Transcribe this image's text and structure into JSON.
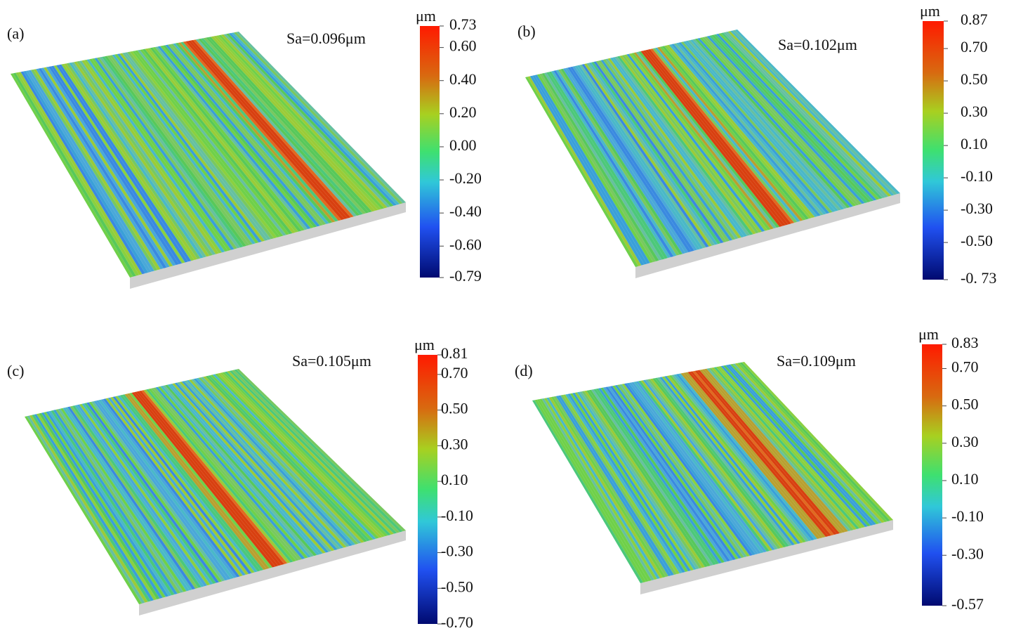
{
  "panels": [
    {
      "label": "(a)",
      "sa": "Sa=0.096μm",
      "unit": "μm",
      "colorbar": {
        "lim": [
          -0.79,
          0.73
        ],
        "ticks": [
          {
            "value": 0.73,
            "label": "0.73"
          },
          {
            "value": 0.6,
            "label": "0.60"
          },
          {
            "value": 0.4,
            "label": "0.40"
          },
          {
            "value": 0.2,
            "label": "0.20"
          },
          {
            "value": 0,
            "label": "0.00"
          },
          {
            "value": -0.2,
            "label": "-0.20"
          },
          {
            "value": -0.4,
            "label": "-0.40"
          },
          {
            "value": -0.6,
            "label": "-0.60"
          },
          {
            "value": -0.79,
            "label": "-0.79"
          }
        ]
      }
    },
    {
      "label": "(b)",
      "sa": "Sa=0.102μm",
      "unit": "μm",
      "colorbar": {
        "lim": [
          -0.73,
          0.87
        ],
        "ticks": [
          {
            "value": 0.87,
            "label": "0.87"
          },
          {
            "value": 0.7,
            "label": "0.70"
          },
          {
            "value": 0.5,
            "label": "0.50"
          },
          {
            "value": 0.3,
            "label": "0.30"
          },
          {
            "value": 0.1,
            "label": "0.10"
          },
          {
            "value": -0.1,
            "label": "-0.10"
          },
          {
            "value": -0.3,
            "label": "-0.30"
          },
          {
            "value": -0.5,
            "label": "-0.50"
          },
          {
            "value": -0.73,
            "label": "-0. 73"
          }
        ]
      }
    },
    {
      "label": "(c)",
      "sa": "Sa=0.105μm",
      "unit": "μm",
      "colorbar": {
        "lim": [
          -0.7,
          0.81
        ],
        "ticks": [
          {
            "value": 0.81,
            "label": "0.81"
          },
          {
            "value": 0.7,
            "label": "0.70"
          },
          {
            "value": 0.5,
            "label": "0.50"
          },
          {
            "value": 0.3,
            "label": "0.30"
          },
          {
            "value": 0.1,
            "label": "0.10"
          },
          {
            "value": -0.1,
            "label": "-0.10"
          },
          {
            "value": -0.3,
            "label": "-0.30"
          },
          {
            "value": -0.5,
            "label": "-0.50"
          },
          {
            "value": -0.7,
            "label": "-0.70"
          }
        ]
      }
    },
    {
      "label": "(d)",
      "sa": "Sa=0.109μm",
      "unit": "μm",
      "colorbar": {
        "lim": [
          -0.57,
          0.83
        ],
        "ticks": [
          {
            "value": 0.83,
            "label": "0.83"
          },
          {
            "value": 0.7,
            "label": "0.70"
          },
          {
            "value": 0.5,
            "label": "0.50"
          },
          {
            "value": 0.3,
            "label": "0.30"
          },
          {
            "value": 0.1,
            "label": "0.10"
          },
          {
            "value": -0.1,
            "label": "-0.10"
          },
          {
            "value": -0.3,
            "label": "-0.30"
          },
          {
            "value": -0.57,
            "label": "-0.57"
          }
        ]
      }
    }
  ]
}
